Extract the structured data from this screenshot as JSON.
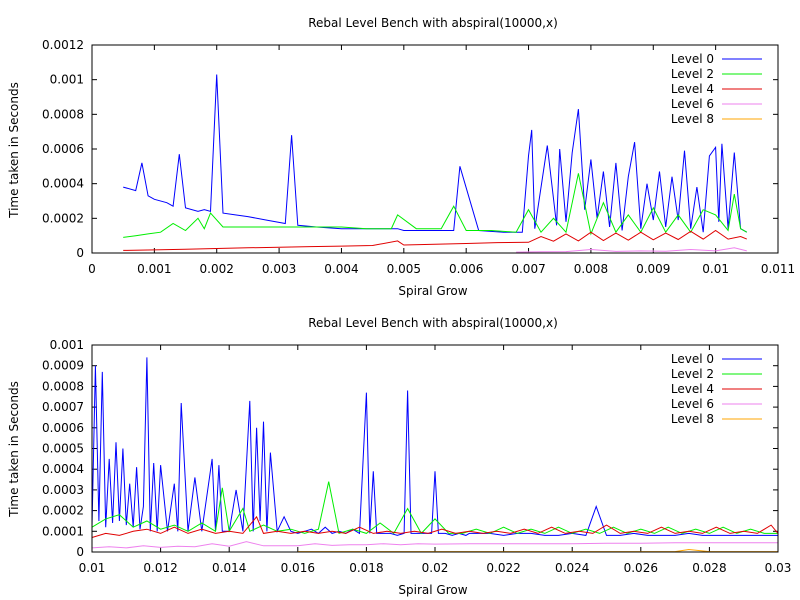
{
  "legend_entries": [
    "Level 0",
    "Level 2",
    "Level 4",
    "Level 6",
    "Level 8"
  ],
  "colors": {
    "Level 0": "#0000ff",
    "Level 2": "#00ee00",
    "Level 4": "#e00000",
    "Level 6": "#ee82ee",
    "Level 8": "#ffa500"
  },
  "chart_data": [
    {
      "type": "line",
      "title": "Rebal Level Bench with abspiral(10000,x)",
      "xlabel": "Spiral Grow",
      "ylabel": "Time taken in Seconds",
      "xlim": [
        0,
        0.011
      ],
      "ylim": [
        0,
        0.0012
      ],
      "xticks": [
        "0",
        "0.001",
        "0.002",
        "0.003",
        "0.004",
        "0.005",
        "0.006",
        "0.007",
        "0.008",
        "0.009",
        "0.01",
        "0.011"
      ],
      "yticks": [
        "0",
        "0.0002",
        "0.0004",
        "0.0006",
        "0.0008",
        "0.001",
        "0.0012"
      ],
      "legend_position": "top-right",
      "grid": false,
      "series": [
        {
          "name": "Level 0",
          "x": [
            0.0005,
            0.0007,
            0.0008,
            0.0009,
            0.001,
            0.0012,
            0.0013,
            0.0014,
            0.0015,
            0.0017,
            0.0018,
            0.0019,
            0.002,
            0.0021,
            0.0023,
            0.0025,
            0.0028,
            0.0031,
            0.0032,
            0.0033,
            0.0036,
            0.004,
            0.0045,
            0.0049,
            0.005,
            0.0055,
            0.0058,
            0.0059,
            0.0062,
            0.0066,
            0.0069,
            0.007,
            0.00705,
            0.0071,
            0.0073,
            0.00745,
            0.0075,
            0.0076,
            0.0077,
            0.0078,
            0.0079,
            0.008,
            0.0081,
            0.0082,
            0.0083,
            0.0084,
            0.0085,
            0.0086,
            0.0087,
            0.0088,
            0.0089,
            0.009,
            0.0091,
            0.0092,
            0.0093,
            0.0094,
            0.0095,
            0.0096,
            0.0097,
            0.0098,
            0.0099,
            0.01,
            0.01005,
            0.0101,
            0.0102,
            0.0103,
            0.0104,
            0.0105
          ],
          "y": [
            0.00038,
            0.00036,
            0.00052,
            0.00033,
            0.00031,
            0.00029,
            0.00027,
            0.00057,
            0.00026,
            0.00024,
            0.00025,
            0.00024,
            0.00103,
            0.00023,
            0.00022,
            0.00021,
            0.00019,
            0.00017,
            0.00068,
            0.00016,
            0.00015,
            0.00014,
            0.00014,
            0.00014,
            0.00013,
            0.00013,
            0.00013,
            0.0005,
            0.00013,
            0.00012,
            0.00012,
            0.00056,
            0.00071,
            0.00014,
            0.00062,
            0.00016,
            0.0006,
            0.00018,
            0.00058,
            0.00083,
            0.00025,
            0.00054,
            0.0002,
            0.00047,
            0.00015,
            0.00052,
            0.00013,
            0.00044,
            0.00064,
            0.00014,
            0.0004,
            0.00019,
            0.00047,
            0.00015,
            0.00044,
            0.00019,
            0.00059,
            0.00014,
            0.00038,
            0.00012,
            0.00056,
            0.00061,
            0.00018,
            0.00063,
            0.00014,
            0.00058,
            0.00014,
            0.00012
          ]
        },
        {
          "name": "Level 2",
          "x": [
            0.0005,
            0.0007,
            0.0009,
            0.0011,
            0.0013,
            0.0015,
            0.0017,
            0.0018,
            0.0019,
            0.0021,
            0.0024,
            0.0028,
            0.0032,
            0.0036,
            0.004,
            0.0044,
            0.0048,
            0.0049,
            0.0052,
            0.0056,
            0.0058,
            0.006,
            0.0064,
            0.0068,
            0.007,
            0.0072,
            0.0074,
            0.0076,
            0.0078,
            0.008,
            0.0082,
            0.0084,
            0.0086,
            0.0088,
            0.009,
            0.0092,
            0.0094,
            0.0096,
            0.0098,
            0.01,
            0.0102,
            0.0103,
            0.0104,
            0.0105
          ],
          "y": [
            9e-05,
            0.0001,
            0.00011,
            0.00012,
            0.00017,
            0.00013,
            0.0002,
            0.00014,
            0.00023,
            0.00015,
            0.00015,
            0.00015,
            0.00015,
            0.00015,
            0.00015,
            0.00014,
            0.00014,
            0.00022,
            0.00014,
            0.00014,
            0.00027,
            0.00013,
            0.00013,
            0.00012,
            0.00025,
            0.00012,
            0.0002,
            0.00012,
            0.00046,
            0.00011,
            0.00029,
            0.00012,
            0.00022,
            0.00012,
            0.00026,
            0.00012,
            0.00022,
            0.00012,
            0.00025,
            0.00022,
            0.00013,
            0.00034,
            0.00014,
            0.00012
          ]
        },
        {
          "name": "Level 4",
          "x": [
            0.0005,
            0.001,
            0.0015,
            0.002,
            0.0025,
            0.003,
            0.0035,
            0.004,
            0.0045,
            0.0049,
            0.005,
            0.0055,
            0.006,
            0.0065,
            0.007,
            0.0072,
            0.0074,
            0.0076,
            0.0078,
            0.008,
            0.0082,
            0.0084,
            0.0086,
            0.0088,
            0.009,
            0.0092,
            0.0094,
            0.0096,
            0.0098,
            0.01,
            0.0102,
            0.0104,
            0.0105
          ],
          "y": [
            1.5e-05,
            1.8e-05,
            2.2e-05,
            2.6e-05,
            3e-05,
            3.3e-05,
            3.7e-05,
            4e-05,
            4.3e-05,
            7e-05,
            4.6e-05,
            5e-05,
            5.5e-05,
            6e-05,
            6.2e-05,
            9.5e-05,
            6.8e-05,
            0.00011,
            7e-05,
            0.00012,
            7.2e-05,
            0.000115,
            7.4e-05,
            0.00012,
            7.6e-05,
            0.000115,
            7.8e-05,
            0.000125,
            8e-05,
            0.00013,
            8e-05,
            9.5e-05,
            8e-05
          ]
        },
        {
          "name": "Level 6",
          "x": [
            0.0068,
            0.0072,
            0.0076,
            0.008,
            0.0084,
            0.0088,
            0.0092,
            0.0096,
            0.01,
            0.0103,
            0.0105
          ],
          "y": [
            5e-06,
            7e-06,
            8e-06,
            2e-05,
            9e-06,
            1.2e-05,
            1e-05,
            2e-05,
            1.2e-05,
            3e-05,
            1.2e-05
          ]
        }
      ]
    },
    {
      "type": "line",
      "title": "Rebal Level Bench with abspiral(10000,x)",
      "xlabel": "Spiral Grow",
      "ylabel": "Time taken in Seconds",
      "xlim": [
        0.01,
        0.03
      ],
      "ylim": [
        0,
        0.001
      ],
      "xticks": [
        "0.01",
        "0.012",
        "0.014",
        "0.016",
        "0.018",
        "0.02",
        "0.022",
        "0.024",
        "0.026",
        "0.028",
        "0.03"
      ],
      "yticks": [
        "0",
        "0.0001",
        "0.0002",
        "0.0003",
        "0.0004",
        "0.0005",
        "0.0006",
        "0.0007",
        "0.0008",
        "0.0009",
        "0.001"
      ],
      "legend_position": "top-right",
      "grid": false,
      "series": [
        {
          "name": "Level 0",
          "x": [
            0.01,
            0.0101,
            0.0102,
            0.0103,
            0.0104,
            0.0105,
            0.0106,
            0.0107,
            0.0108,
            0.0109,
            0.011,
            0.0111,
            0.0112,
            0.0113,
            0.0114,
            0.0115,
            0.0116,
            0.0117,
            0.0118,
            0.0119,
            0.012,
            0.0122,
            0.0124,
            0.0125,
            0.0126,
            0.0128,
            0.013,
            0.0132,
            0.0134,
            0.0135,
            0.0136,
            0.0137,
            0.0138,
            0.014,
            0.0142,
            0.0144,
            0.0146,
            0.0147,
            0.0148,
            0.0149,
            0.015,
            0.0151,
            0.0152,
            0.0154,
            0.0156,
            0.0158,
            0.016,
            0.0162,
            0.0164,
            0.0166,
            0.0168,
            0.017,
            0.0172,
            0.0174,
            0.0176,
            0.0178,
            0.018,
            0.0181,
            0.0182,
            0.0183,
            0.0185,
            0.0187,
            0.0189,
            0.0191,
            0.0192,
            0.0193,
            0.0195,
            0.0197,
            0.0199,
            0.02,
            0.0201,
            0.0203,
            0.0205,
            0.0207,
            0.0209,
            0.021,
            0.0213,
            0.0216,
            0.022,
            0.0224,
            0.0228,
            0.0232,
            0.0236,
            0.024,
            0.0244,
            0.0247,
            0.025,
            0.0254,
            0.0258,
            0.0262,
            0.0266,
            0.027,
            0.0274,
            0.0278,
            0.0282,
            0.0286,
            0.029,
            0.0294,
            0.0298,
            0.03
          ],
          "y": [
            0.00012,
            0.0009,
            0.00015,
            0.00087,
            0.00012,
            0.00045,
            0.00014,
            0.00053,
            0.00015,
            0.0005,
            0.00013,
            0.00033,
            0.00012,
            0.00041,
            0.00011,
            0.00022,
            0.00094,
            0.0001,
            0.00043,
            0.0001,
            0.00042,
            0.0001,
            0.00033,
            0.0001,
            0.00072,
            0.0001,
            0.00036,
            0.0001,
            0.00033,
            0.00045,
            0.0001,
            0.00042,
            0.0001,
            0.0001,
            0.0003,
            0.0001,
            0.00073,
            0.0001,
            0.0006,
            0.00015,
            0.00063,
            0.0001,
            0.00048,
            0.0001,
            0.00017,
            0.0001,
            9e-05,
            0.0001,
            0.00011,
            9e-05,
            0.00012,
            9e-05,
            0.0001,
            9e-05,
            0.00011,
            9e-05,
            0.00077,
            9e-05,
            0.00039,
            9e-05,
            9e-05,
            9e-05,
            8e-05,
            9e-05,
            0.00078,
            9e-05,
            9e-05,
            9e-05,
            9e-05,
            0.00039,
            9e-05,
            9e-05,
            8e-05,
            9e-05,
            8e-05,
            9e-05,
            9e-05,
            9e-05,
            8e-05,
            9e-05,
            9e-05,
            8e-05,
            8e-05,
            9e-05,
            8e-05,
            0.00022,
            8e-05,
            8e-05,
            9e-05,
            8e-05,
            8e-05,
            8e-05,
            9e-05,
            8e-05,
            8e-05,
            8e-05,
            8e-05,
            8e-05,
            8e-05,
            8e-05
          ]
        },
        {
          "name": "Level 2",
          "x": [
            0.01,
            0.0104,
            0.0108,
            0.0112,
            0.0116,
            0.012,
            0.0124,
            0.0128,
            0.0132,
            0.0136,
            0.0138,
            0.014,
            0.0144,
            0.0146,
            0.015,
            0.0154,
            0.0158,
            0.0162,
            0.0166,
            0.0169,
            0.0172,
            0.0176,
            0.018,
            0.0184,
            0.0188,
            0.0192,
            0.0196,
            0.02,
            0.0204,
            0.0208,
            0.0212,
            0.0216,
            0.022,
            0.0224,
            0.0228,
            0.0232,
            0.0236,
            0.024,
            0.0244,
            0.0248,
            0.0252,
            0.0256,
            0.026,
            0.0264,
            0.0268,
            0.0272,
            0.0276,
            0.028,
            0.0284,
            0.0288,
            0.0292,
            0.0296,
            0.03
          ],
          "y": [
            0.00012,
            0.00016,
            0.00018,
            0.00012,
            0.00015,
            0.00011,
            0.00013,
            0.0001,
            0.00014,
            0.0001,
            0.00031,
            0.0001,
            0.00021,
            0.0001,
            0.00013,
            0.0001,
            0.00011,
            9e-05,
            0.00011,
            0.00034,
            9e-05,
            0.00011,
            9e-05,
            0.00014,
            9e-05,
            0.00021,
            9e-05,
            0.00016,
            9e-05,
            9e-05,
            0.00011,
            9e-05,
            0.00012,
            9e-05,
            0.00011,
            9e-05,
            0.00012,
            9e-05,
            0.00011,
            9e-05,
            0.00012,
            9e-05,
            0.00011,
            9e-05,
            0.00012,
            9e-05,
            0.00011,
            9e-05,
            0.00012,
            9e-05,
            0.00011,
            9e-05,
            9e-05
          ]
        },
        {
          "name": "Level 4",
          "x": [
            0.01,
            0.0104,
            0.0108,
            0.0112,
            0.0116,
            0.012,
            0.0124,
            0.0128,
            0.0132,
            0.0136,
            0.014,
            0.0144,
            0.0148,
            0.015,
            0.0154,
            0.0158,
            0.0162,
            0.0166,
            0.017,
            0.0174,
            0.0178,
            0.0182,
            0.0186,
            0.019,
            0.0194,
            0.0198,
            0.0202,
            0.0206,
            0.021,
            0.0214,
            0.0218,
            0.0222,
            0.0226,
            0.023,
            0.0234,
            0.0238,
            0.0242,
            0.0246,
            0.025,
            0.0254,
            0.0258,
            0.0262,
            0.0266,
            0.027,
            0.0274,
            0.0278,
            0.0282,
            0.0286,
            0.029,
            0.0294,
            0.0298,
            0.03
          ],
          "y": [
            7e-05,
            9e-05,
            8e-05,
            0.0001,
            0.00011,
            9e-05,
            0.00012,
            9e-05,
            0.00011,
            9e-05,
            0.0001,
            9e-05,
            0.00017,
            9e-05,
            0.0001,
            9e-05,
            0.0001,
            9e-05,
            0.0001,
            9e-05,
            0.00012,
            9e-05,
            0.0001,
            9e-05,
            0.0001,
            9e-05,
            0.00011,
            9e-05,
            0.0001,
            9e-05,
            0.0001,
            9e-05,
            0.00011,
            9e-05,
            0.00012,
            9e-05,
            0.0001,
            9e-05,
            0.00013,
            9e-05,
            0.0001,
            9e-05,
            0.00012,
            9e-05,
            0.0001,
            9e-05,
            0.00012,
            9e-05,
            0.0001,
            9e-05,
            0.00013,
            9e-05
          ]
        },
        {
          "name": "Level 6",
          "x": [
            0.01,
            0.0105,
            0.011,
            0.0115,
            0.012,
            0.0125,
            0.013,
            0.0135,
            0.014,
            0.0145,
            0.015,
            0.0155,
            0.016,
            0.0165,
            0.017,
            0.0175,
            0.018,
            0.0185,
            0.019,
            0.0195,
            0.02,
            0.021,
            0.022,
            0.023,
            0.024,
            0.025,
            0.026,
            0.027,
            0.028,
            0.029,
            0.03
          ],
          "y": [
            2e-05,
            2.5e-05,
            2e-05,
            3e-05,
            2.2e-05,
            2.8e-05,
            2.5e-05,
            4e-05,
            2.8e-05,
            5e-05,
            3e-05,
            3e-05,
            3e-05,
            4e-05,
            3.2e-05,
            3.5e-05,
            3.5e-05,
            4e-05,
            3.5e-05,
            4e-05,
            3.8e-05,
            4e-05,
            4e-05,
            4e-05,
            4e-05,
            4.2e-05,
            4.2e-05,
            4.5e-05,
            4.5e-05,
            4.5e-05,
            4.5e-05
          ]
        },
        {
          "name": "Level 8",
          "x": [
            0.016,
            0.017,
            0.018,
            0.019,
            0.02,
            0.021,
            0.022,
            0.023,
            0.024,
            0.025,
            0.026,
            0.027,
            0.0274,
            0.028,
            0.029,
            0.03
          ],
          "y": [
            2e-06,
            2e-06,
            2e-06,
            2e-06,
            2e-06,
            2e-06,
            2e-06,
            2e-06,
            2e-06,
            2e-06,
            2e-06,
            2e-06,
            1.2e-05,
            2e-06,
            2e-06,
            2e-06
          ]
        }
      ]
    }
  ]
}
